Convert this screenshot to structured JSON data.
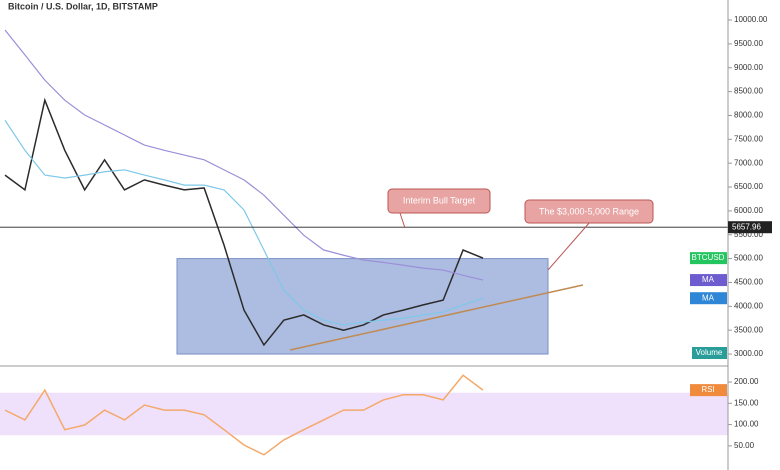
{
  "chart_data": [
    {
      "type": "line",
      "title": "Bitcoin / U.S. Dollar, 1D, BITSTAMP",
      "ylim": [
        2770,
        10420
      ],
      "yticks": [
        {
          "value": 3000,
          "label": "3000.00"
        },
        {
          "value": 3500,
          "label": "3500.00"
        },
        {
          "value": 4000,
          "label": "4000.00"
        },
        {
          "value": 4500,
          "label": "4500.00"
        },
        {
          "value": 5000,
          "label": "5000.00"
        },
        {
          "value": 5500,
          "label": "5500.00"
        },
        {
          "value": 6000,
          "label": "6000.00"
        },
        {
          "value": 6500,
          "label": "6500.00"
        },
        {
          "value": 7000,
          "label": "7000.00"
        },
        {
          "value": 7500,
          "label": "7500.00"
        },
        {
          "value": 8000,
          "label": "8000.00"
        },
        {
          "value": 8500,
          "label": "8500.00"
        },
        {
          "value": 9000,
          "label": "9000.00"
        },
        {
          "value": 9500,
          "label": "9500.00"
        },
        {
          "value": 10000,
          "label": "10000.00"
        }
      ],
      "series": [
        {
          "name": "BTCUSD",
          "color": "#2b2b2b",
          "tag_color": "#22c55e",
          "values": [
            6750,
            6440,
            8320,
            7270,
            6440,
            7070,
            6440,
            6650,
            6540,
            6440,
            6480,
            5280,
            3920,
            3190,
            3710,
            3820,
            3610,
            3500,
            3610,
            3820,
            3920,
            4030,
            4130,
            5180,
            5010
          ]
        },
        {
          "name": "MA",
          "color": "#9c8fd8",
          "tag_color": "#6c5ccf",
          "values": [
            9790,
            9270,
            8740,
            8320,
            8010,
            7800,
            7590,
            7380,
            7270,
            7170,
            7070,
            6860,
            6650,
            6330,
            5910,
            5490,
            5180,
            5070,
            4970,
            4920,
            4860,
            4800,
            4760,
            4650,
            4550
          ]
        },
        {
          "name": "MA",
          "color": "#7ec8e8",
          "tag_color": "#2f86d6",
          "values": [
            7900,
            7270,
            6750,
            6690,
            6750,
            6820,
            6860,
            6750,
            6650,
            6540,
            6540,
            6440,
            6020,
            5180,
            4340,
            3920,
            3710,
            3610,
            3670,
            3710,
            3750,
            3820,
            3880,
            4030,
            4170
          ]
        }
      ],
      "last_price": 5657.96,
      "range": [
        3000,
        5000
      ],
      "volume_label": "Volume",
      "annotations": [
        "Interim Bull Target",
        "The $3,000-5,000 Range"
      ]
    },
    {
      "type": "line",
      "ylim": [
        5,
        233
      ],
      "yticks": [
        {
          "value": 50,
          "label": "50.00"
        },
        {
          "value": 100,
          "label": "100.00"
        },
        {
          "value": 150,
          "label": "150.00"
        },
        {
          "value": 200,
          "label": "200.00"
        }
      ],
      "band": [
        75,
        175
      ],
      "series": [
        {
          "name": "RSI",
          "color": "#f4a96a",
          "tag_color": "#f08a3c",
          "values": [
            134,
            111,
            181,
            88,
            99,
            134,
            111,
            146,
            134,
            134,
            123,
            88,
            52,
            29,
            64,
            88,
            111,
            134,
            134,
            158,
            170,
            170,
            158,
            216,
            181
          ]
        }
      ]
    }
  ]
}
